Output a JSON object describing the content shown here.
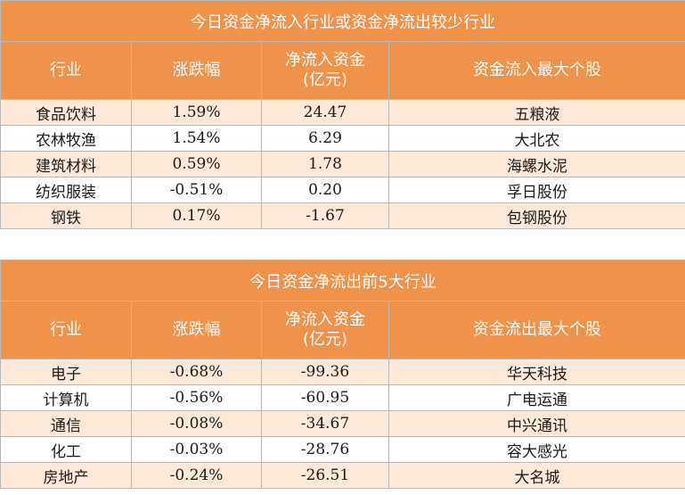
{
  "table1": {
    "title": "今日资金净流入行业或资金净流出较少行业",
    "headers": [
      "行业",
      "涨跌幅",
      "净流入资金",
      "(亿元)",
      "资金流入最大个股"
    ],
    "rows": [
      {
        "industry": "食品饮料",
        "change": "1.59%",
        "flow": "24.47",
        "stock": "五粮液"
      },
      {
        "industry": "农林牧渔",
        "change": "1.54%",
        "flow": "6.29",
        "stock": "大北农"
      },
      {
        "industry": "建筑材料",
        "change": "0.59%",
        "flow": "1.78",
        "stock": "海螺水泥"
      },
      {
        "industry": "纺织服装",
        "change": "-0.51%",
        "flow": "0.20",
        "stock": "孚日股份"
      },
      {
        "industry": "钢铁",
        "change": "0.17%",
        "flow": "-1.67",
        "stock": "包钢股份"
      }
    ]
  },
  "table2": {
    "title": "今日资金净流出前5大行业",
    "headers": [
      "行业",
      "涨跌幅",
      "净流入资金",
      "(亿元)",
      "资金流出最大个股"
    ],
    "rows": [
      {
        "industry": "电子",
        "change": "-0.68%",
        "flow": "-99.36",
        "stock": "华天科技"
      },
      {
        "industry": "计算机",
        "change": "-0.56%",
        "flow": "-60.95",
        "stock": "广电运通"
      },
      {
        "industry": "通信",
        "change": "-0.08%",
        "flow": "-34.67",
        "stock": "中兴通讯"
      },
      {
        "industry": "化工",
        "change": "-0.03%",
        "flow": "-28.76",
        "stock": "容大感光"
      },
      {
        "industry": "房地产",
        "change": "-0.24%",
        "flow": "-26.51",
        "stock": "大名城"
      }
    ]
  },
  "colors": {
    "header_bg": "#f0924a",
    "stripe_bg": "#fde9d9"
  }
}
